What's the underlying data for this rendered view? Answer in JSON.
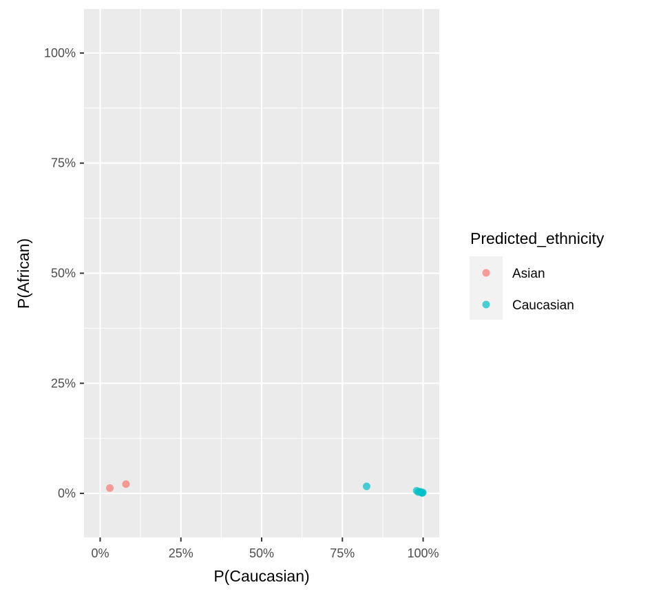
{
  "chart_data": {
    "type": "scatter",
    "xlabel": "P(Caucasian)",
    "ylabel": "P(African)",
    "xlim": [
      -0.05,
      1.05
    ],
    "ylim": [
      -0.1,
      1.1
    ],
    "x_ticks": [
      0,
      0.25,
      0.5,
      0.75,
      1.0
    ],
    "x_tick_labels": [
      "0%",
      "25%",
      "50%",
      "75%",
      "100%"
    ],
    "y_ticks": [
      0,
      0.25,
      0.5,
      0.75,
      1.0
    ],
    "y_tick_labels": [
      "0%",
      "25%",
      "50%",
      "75%",
      "100%"
    ],
    "grid": true,
    "legend": {
      "title": "Predicted_ethnicity",
      "position": "right"
    },
    "series": [
      {
        "name": "Asian",
        "color": "#F8766D",
        "points": [
          {
            "x": 0.03,
            "y": 0.012
          },
          {
            "x": 0.08,
            "y": 0.021
          }
        ]
      },
      {
        "name": "Caucasian",
        "color": "#00BFC4",
        "points": [
          {
            "x": 0.825,
            "y": 0.016
          },
          {
            "x": 0.98,
            "y": 0.006
          },
          {
            "x": 0.985,
            "y": 0.003
          },
          {
            "x": 0.99,
            "y": 0.004
          },
          {
            "x": 0.995,
            "y": 0.002
          },
          {
            "x": 0.997,
            "y": 0.001
          },
          {
            "x": 0.999,
            "y": 0.002
          }
        ]
      }
    ]
  }
}
